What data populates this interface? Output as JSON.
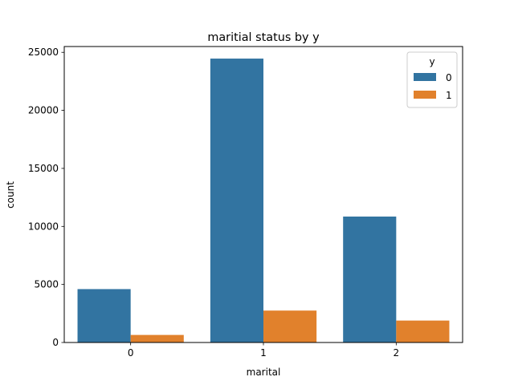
{
  "chart_data": {
    "type": "bar",
    "title": "maritial status by y",
    "xlabel": "marital",
    "ylabel": "count",
    "categories": [
      "0",
      "1",
      "2"
    ],
    "ylim": [
      0,
      25500
    ],
    "yticks": [
      0,
      5000,
      10000,
      15000,
      20000,
      25000
    ],
    "ytick_labels": [
      "0",
      "5000",
      "10000",
      "15000",
      "20000",
      "25000"
    ],
    "grid": false,
    "legend": {
      "title": "y",
      "placement": "top-right"
    },
    "series": [
      {
        "name": "0",
        "color": "#3274a1",
        "values": [
          4600,
          24460,
          10850
        ]
      },
      {
        "name": "1",
        "color": "#e1812c",
        "values": [
          650,
          2750,
          1890
        ]
      }
    ]
  }
}
